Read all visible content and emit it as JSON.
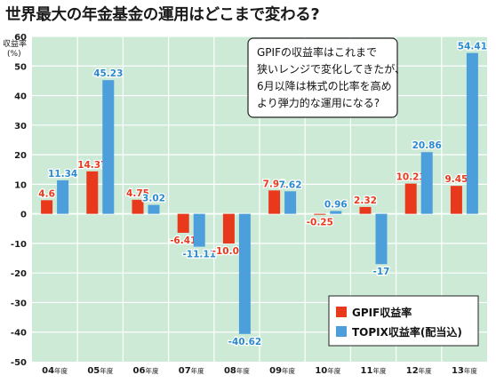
{
  "colors": {
    "plot_background": "#ccead6",
    "gpif": "#e8391d",
    "topix": "#4d9fdb",
    "gpif_label": "#e8391d",
    "topix_label": "#2a8ad0",
    "grid": "#ffffff",
    "axis_text": "#1a1a1a"
  },
  "chart_data": {
    "type": "bar",
    "title": "世界最大の年金基金の運用はどこまで変わる?",
    "ylabel_line1": "収益率",
    "ylabel_line2": "(%)",
    "ylim": [
      -50,
      60
    ],
    "yticks": [
      60,
      50,
      40,
      30,
      20,
      10,
      0,
      -10,
      -20,
      -30,
      -40,
      -50
    ],
    "categories": [
      "04年度",
      "05年度",
      "06年度",
      "07年度",
      "08年度",
      "09年度",
      "10年度",
      "11年度",
      "12年度",
      "13年度"
    ],
    "categories_split": [
      {
        "num": "04",
        "suffix": "年度"
      },
      {
        "num": "05",
        "suffix": "年度"
      },
      {
        "num": "06",
        "suffix": "年度"
      },
      {
        "num": "07",
        "suffix": "年度"
      },
      {
        "num": "08",
        "suffix": "年度"
      },
      {
        "num": "09",
        "suffix": "年度"
      },
      {
        "num": "10",
        "suffix": "年度"
      },
      {
        "num": "11",
        "suffix": "年度"
      },
      {
        "num": "12",
        "suffix": "年度"
      },
      {
        "num": "13",
        "suffix": "年度"
      }
    ],
    "series": [
      {
        "name": "GPIF収益率",
        "values": [
          4.6,
          14.37,
          4.75,
          -6.41,
          -10.03,
          7.91,
          -0.25,
          2.32,
          10.23,
          9.45
        ],
        "labels": [
          "4.6",
          "14.37",
          "4.75",
          "-6.41",
          "-10.03",
          "7.91",
          "-0.25",
          "2.32",
          "10.23",
          "9.45"
        ]
      },
      {
        "name": "TOPIX収益率(配当込)",
        "values": [
          11.34,
          45.23,
          3.02,
          -11.11,
          -40.62,
          7.62,
          0.96,
          -17,
          20.86,
          54.41
        ],
        "labels": [
          "11.34",
          "45.23",
          "3.02",
          "-11.11",
          "-40.62",
          "7.62",
          "0.96",
          "-17",
          "20.86",
          "54.41"
        ]
      }
    ],
    "legend": {
      "position": "bottom-right",
      "items": [
        "GPIF収益率",
        "TOPIX収益率(配当込)"
      ]
    },
    "annotation": {
      "lines": [
        "GPIFの収益率はこれまで",
        "狭いレンジで変化してきたが、",
        "6月以降は株式の比率を高め",
        "より弾力的な運用になる?"
      ]
    }
  }
}
